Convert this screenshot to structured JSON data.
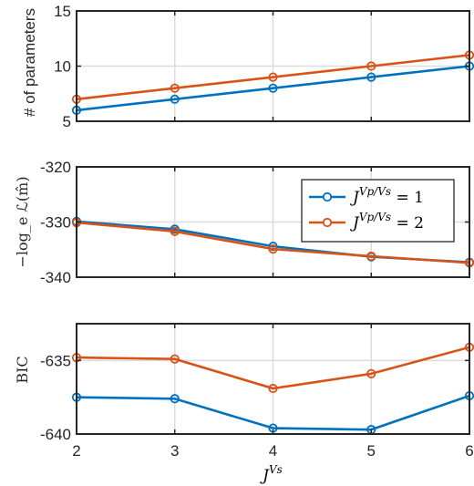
{
  "chart_data": [
    {
      "type": "line",
      "panel": "parameters",
      "x": [
        2,
        3,
        4,
        5,
        6
      ],
      "ylabel": "# of parameters",
      "ylim": [
        5,
        15
      ],
      "yticks": [
        5,
        10,
        15
      ],
      "ytick_labels": [
        "5",
        "10",
        "15"
      ],
      "grid": true,
      "series": [
        {
          "name": "J^{Vp/Vs} = 1",
          "color": "#0072BD",
          "values": [
            6,
            7,
            8,
            9,
            10
          ]
        },
        {
          "name": "J^{Vp/Vs} = 2",
          "color": "#D95319",
          "values": [
            7,
            8,
            9,
            10,
            11
          ]
        }
      ]
    },
    {
      "type": "line",
      "panel": "neg-log-likelihood",
      "x": [
        2,
        3,
        4,
        5,
        6
      ],
      "ylabel": "−log_e ℒ(m̂)",
      "ylim": [
        -340,
        -320
      ],
      "yticks": [
        -340,
        -330,
        -320
      ],
      "ytick_labels": [
        "-340",
        "-330",
        "-320"
      ],
      "grid": true,
      "legend": "top-right",
      "series": [
        {
          "name": "J^{Vp/Vs} = 1",
          "color": "#0072BD",
          "values": [
            -329.9,
            -331.3,
            -334.4,
            -336.3,
            -337.3
          ]
        },
        {
          "name": "J^{Vp/Vs} = 2",
          "color": "#D95319",
          "values": [
            -330.1,
            -331.7,
            -334.9,
            -336.2,
            -337.4
          ]
        }
      ]
    },
    {
      "type": "line",
      "panel": "bic",
      "x": [
        2,
        3,
        4,
        5,
        6
      ],
      "ylabel": "BIC",
      "xlabel": "J^{Vs}",
      "ylim": [
        -640,
        -632.5
      ],
      "yticks": [
        -640,
        -635
      ],
      "ytick_labels": [
        "-640",
        "-635"
      ],
      "xticks": [
        2,
        3,
        4,
        5,
        6
      ],
      "xtick_labels": [
        "2",
        "3",
        "4",
        "5",
        "6"
      ],
      "grid": true,
      "series": [
        {
          "name": "J^{Vp/Vs} = 1",
          "color": "#0072BD",
          "values": [
            -637.5,
            -637.6,
            -639.6,
            -639.7,
            -637.4
          ]
        },
        {
          "name": "J^{Vp/Vs} = 2",
          "color": "#D95319",
          "values": [
            -634.8,
            -634.9,
            -636.9,
            -635.9,
            -634.1
          ]
        }
      ]
    }
  ],
  "legend": {
    "entries": [
      {
        "base": "J",
        "sup": "Vp/Vs",
        "rhs": " = 1",
        "color": "#0072BD"
      },
      {
        "base": "J",
        "sup": "Vp/Vs",
        "rhs": " = 2",
        "color": "#D95319"
      }
    ]
  },
  "xlabel": {
    "base": "J",
    "sup": "Vs"
  }
}
